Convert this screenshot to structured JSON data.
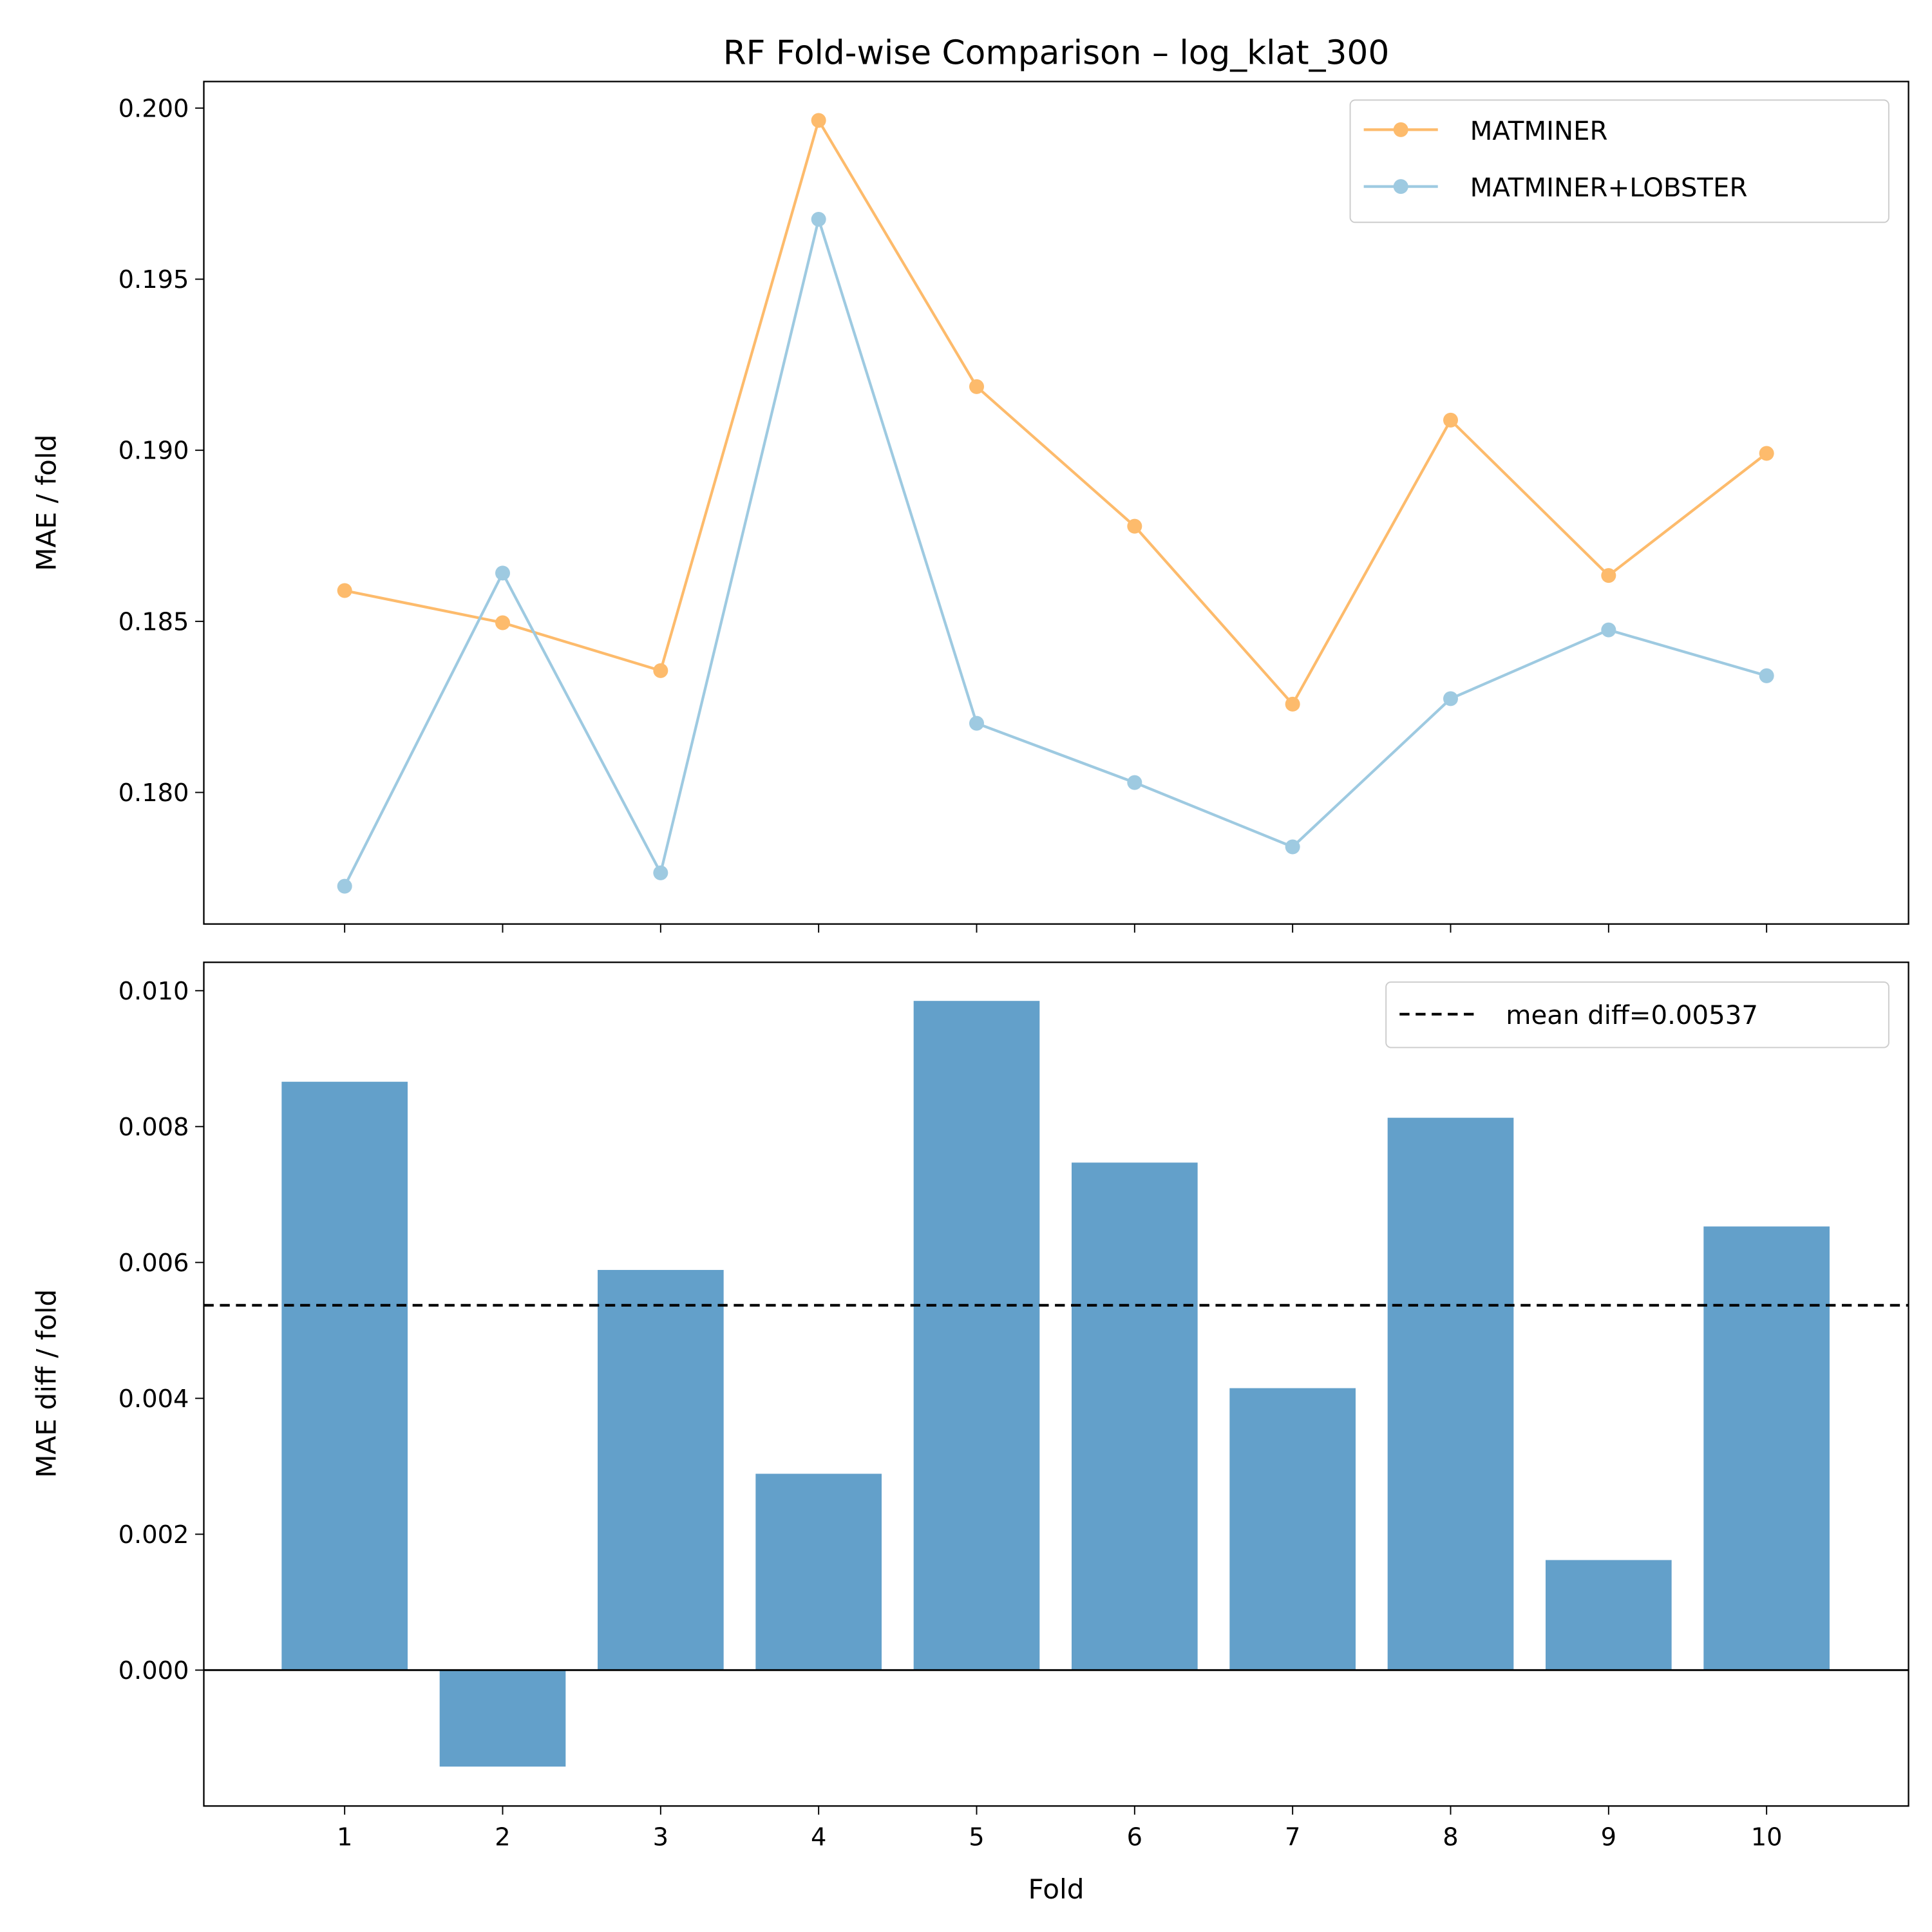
{
  "chart_data": [
    {
      "type": "line",
      "title": "RF Fold-wise Comparison – log_klat_300",
      "xlabel": "",
      "ylabel": "MAE / fold",
      "x": [
        1,
        2,
        3,
        4,
        5,
        6,
        7,
        8,
        9,
        10
      ],
      "ylim": [
        0.1757,
        0.2007
      ],
      "yticks": [
        "0.180",
        "0.185",
        "0.190",
        "0.195",
        "0.200"
      ],
      "grid": false,
      "legend": "top-right",
      "series": [
        {
          "name": "MATMINER",
          "color": "#fdbb6c",
          "values": [
            0.1859,
            0.18496,
            0.18356,
            0.19964,
            0.19186,
            0.18778,
            0.18258,
            0.19088,
            0.18634,
            0.18991
          ]
        },
        {
          "name": "MATMINER+LOBSTER",
          "color": "#9ecae1",
          "values": [
            0.17726,
            0.18641,
            0.17765,
            0.19675,
            0.18202,
            0.18029,
            0.17841,
            0.18274,
            0.18475,
            0.18341
          ]
        }
      ]
    },
    {
      "type": "bar",
      "xlabel": "Fold",
      "ylabel": "MAE diff / fold",
      "categories": [
        "1",
        "2",
        "3",
        "4",
        "5",
        "6",
        "7",
        "8",
        "9",
        "10"
      ],
      "values": [
        0.00866,
        -0.00142,
        0.00589,
        0.00289,
        0.00985,
        0.00747,
        0.00415,
        0.00813,
        0.00162,
        0.00653
      ],
      "bar_color": "#63a0ca",
      "ylim": [
        -0.002,
        0.0104
      ],
      "yticks": [
        "0.000",
        "0.002",
        "0.004",
        "0.006",
        "0.008",
        "0.010"
      ],
      "zero_line": true,
      "mean_line": {
        "value": 0.00537,
        "label": "mean diff=0.00537",
        "style": "dashed",
        "color": "#000000"
      },
      "grid": false,
      "legend": "top-right"
    }
  ]
}
